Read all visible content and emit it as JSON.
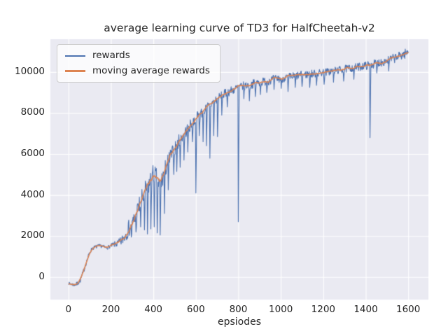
{
  "chart_data": {
    "type": "line",
    "title": "average learning curve of TD3 for HalfCheetah-v2",
    "xlabel": "epsiodes",
    "ylabel": "",
    "xlim": [
      -85,
      1695
    ],
    "ylim": [
      -1100,
      11600
    ],
    "x_range": [
      0,
      1600
    ],
    "sample_step": 2,
    "seed": 7,
    "grid": true,
    "axes_bg": "#eaeaf2",
    "grid_color": "#ffffff",
    "xticks": [
      0,
      200,
      400,
      600,
      800,
      1000,
      1200,
      1400,
      1600
    ],
    "yticks": [
      0,
      2000,
      4000,
      6000,
      8000,
      10000
    ],
    "legend_position": "upper left",
    "legend": [
      "rewards",
      "moving average rewards"
    ],
    "series": [
      {
        "name": "rewards",
        "color": "#4c72b0",
        "base": [
          [
            0,
            -300
          ],
          [
            12,
            -340
          ],
          [
            25,
            -380
          ],
          [
            40,
            -340
          ],
          [
            55,
            -180
          ],
          [
            70,
            250
          ],
          [
            85,
            750
          ],
          [
            100,
            1200
          ],
          [
            112,
            1400
          ],
          [
            125,
            1460
          ],
          [
            140,
            1500
          ],
          [
            155,
            1520
          ],
          [
            168,
            1460
          ],
          [
            180,
            1430
          ],
          [
            192,
            1480
          ],
          [
            205,
            1550
          ],
          [
            220,
            1600
          ],
          [
            235,
            1640
          ],
          [
            250,
            1750
          ],
          [
            262,
            1950
          ],
          [
            275,
            2200
          ],
          [
            288,
            2450
          ],
          [
            296,
            2300
          ],
          [
            305,
            2650
          ],
          [
            315,
            2950
          ],
          [
            325,
            3200
          ],
          [
            338,
            3550
          ],
          [
            350,
            3850
          ],
          [
            362,
            4150
          ],
          [
            375,
            4450
          ],
          [
            388,
            4700
          ],
          [
            400,
            4950
          ],
          [
            410,
            4850
          ],
          [
            420,
            4600
          ],
          [
            430,
            4450
          ],
          [
            440,
            4700
          ],
          [
            450,
            5050
          ],
          [
            460,
            5400
          ],
          [
            472,
            5700
          ],
          [
            485,
            5950
          ],
          [
            500,
            6250
          ],
          [
            515,
            6550
          ],
          [
            530,
            6800
          ],
          [
            545,
            7000
          ],
          [
            560,
            7200
          ],
          [
            575,
            7400
          ],
          [
            590,
            7600
          ],
          [
            605,
            7800
          ],
          [
            620,
            7950
          ],
          [
            635,
            8100
          ],
          [
            650,
            8250
          ],
          [
            665,
            8400
          ],
          [
            680,
            8500
          ],
          [
            695,
            8650
          ],
          [
            710,
            8750
          ],
          [
            725,
            8850
          ],
          [
            740,
            8950
          ],
          [
            755,
            9050
          ],
          [
            770,
            9100
          ],
          [
            785,
            9180
          ],
          [
            800,
            9250
          ],
          [
            820,
            9300
          ],
          [
            840,
            9350
          ],
          [
            860,
            9400
          ],
          [
            880,
            9450
          ],
          [
            900,
            9500
          ],
          [
            925,
            9550
          ],
          [
            950,
            9600
          ],
          [
            975,
            9650
          ],
          [
            1000,
            9700
          ],
          [
            1030,
            9730
          ],
          [
            1060,
            9790
          ],
          [
            1090,
            9840
          ],
          [
            1120,
            9880
          ],
          [
            1150,
            9920
          ],
          [
            1180,
            9950
          ],
          [
            1210,
            9990
          ],
          [
            1240,
            10040
          ],
          [
            1270,
            10090
          ],
          [
            1300,
            10140
          ],
          [
            1330,
            10190
          ],
          [
            1360,
            10240
          ],
          [
            1390,
            10300
          ],
          [
            1420,
            10340
          ],
          [
            1450,
            10430
          ],
          [
            1480,
            10500
          ],
          [
            1510,
            10590
          ],
          [
            1540,
            10690
          ],
          [
            1570,
            10830
          ],
          [
            1600,
            10950
          ]
        ],
        "noise": [
          [
            0,
            60
          ],
          [
            60,
            120
          ],
          [
            110,
            90
          ],
          [
            200,
            90
          ],
          [
            250,
            250
          ],
          [
            280,
            400
          ],
          [
            300,
            500
          ],
          [
            340,
            550
          ],
          [
            380,
            550
          ],
          [
            420,
            600
          ],
          [
            460,
            450
          ],
          [
            500,
            350
          ],
          [
            550,
            300
          ],
          [
            600,
            280
          ],
          [
            650,
            260
          ],
          [
            700,
            240
          ],
          [
            750,
            230
          ],
          [
            800,
            220
          ],
          [
            900,
            210
          ],
          [
            1000,
            220
          ],
          [
            1100,
            200
          ],
          [
            1200,
            190
          ],
          [
            1300,
            190
          ],
          [
            1400,
            200
          ],
          [
            1500,
            220
          ],
          [
            1600,
            240
          ]
        ],
        "dips": [
          [
            296,
            1950
          ],
          [
            318,
            2200
          ],
          [
            340,
            2450
          ],
          [
            358,
            2300
          ],
          [
            372,
            2100
          ],
          [
            388,
            2350
          ],
          [
            404,
            2450
          ],
          [
            418,
            2150
          ],
          [
            432,
            2050
          ],
          [
            452,
            3100
          ],
          [
            470,
            4250
          ],
          [
            496,
            5000
          ],
          [
            510,
            5150
          ],
          [
            526,
            5350
          ],
          [
            544,
            5700
          ],
          [
            562,
            6100
          ],
          [
            584,
            6600
          ],
          [
            600,
            4100
          ],
          [
            616,
            6900
          ],
          [
            634,
            6600
          ],
          [
            650,
            6400
          ],
          [
            666,
            5800
          ],
          [
            684,
            6900
          ],
          [
            702,
            6850
          ],
          [
            722,
            7900
          ],
          [
            748,
            8300
          ],
          [
            800,
            2700
          ],
          [
            826,
            8700
          ],
          [
            852,
            8600
          ],
          [
            880,
            8800
          ],
          [
            904,
            8900
          ],
          [
            934,
            9000
          ],
          [
            968,
            9150
          ],
          [
            1002,
            9200
          ],
          [
            1034,
            9050
          ],
          [
            1068,
            9250
          ],
          [
            1100,
            9300
          ],
          [
            1136,
            9250
          ],
          [
            1168,
            9350
          ],
          [
            1204,
            9400
          ],
          [
            1248,
            9500
          ],
          [
            1296,
            9550
          ],
          [
            1344,
            9650
          ],
          [
            1420,
            6800
          ],
          [
            1452,
            9950
          ],
          [
            1508,
            10050
          ]
        ]
      },
      {
        "name": "moving average rewards",
        "color": "#dd8452",
        "smoothing_window_samples": 15
      }
    ]
  }
}
